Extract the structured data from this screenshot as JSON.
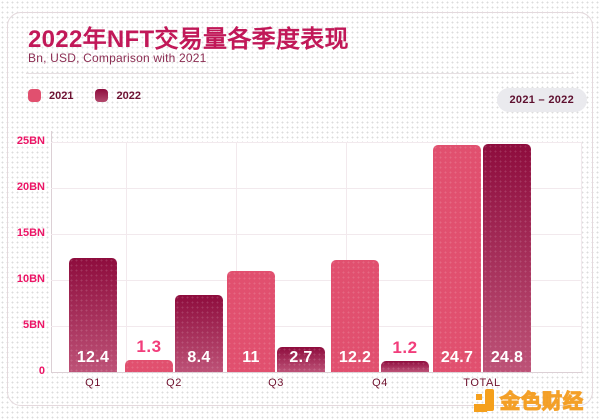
{
  "header": {
    "title": "2022年NFT交易量各季度表现",
    "subtitle": "Bn, USD, Comparison with 2021",
    "range_badge": "2021 – 2022"
  },
  "legend": {
    "items": [
      {
        "label": "2021",
        "color": "#E1506F"
      },
      {
        "label": "2022",
        "color": "#9E1747"
      }
    ]
  },
  "watermark": {
    "text": "金色财经"
  },
  "colors": {
    "title": "#C11858",
    "subtitle": "#8B2D52",
    "bar_2021": "#E1506F",
    "bar_2022_top": "#8E0C3D",
    "bar_2022_bottom": "#BD5277",
    "y_tick_labels": "#EC1566",
    "x_tick_labels": "#70122F",
    "label_above_bar": "#F23D7B",
    "watermark_orange": "#F5A01D",
    "badge_background": "#EAEAEE"
  },
  "chart_data": {
    "type": "bar",
    "title": "2022年NFT交易量各季度表现",
    "subtitle": "Bn, USD, Comparison with 2021",
    "unit": "Bn USD",
    "categories": [
      "Q1",
      "Q2",
      "Q3",
      "Q4",
      "TOTAL"
    ],
    "series": [
      {
        "name": "2021",
        "values": [
          null,
          1.3,
          11,
          12.2,
          24.7
        ]
      },
      {
        "name": "2022",
        "values": [
          12.4,
          8.4,
          2.7,
          1.2,
          24.8
        ]
      }
    ],
    "y_ticks": [
      "25BN",
      "20BN",
      "15BN",
      "10BN",
      "5BN",
      "0"
    ],
    "ylim": [
      0,
      25
    ],
    "grid": true,
    "legend_position": "top-left"
  }
}
